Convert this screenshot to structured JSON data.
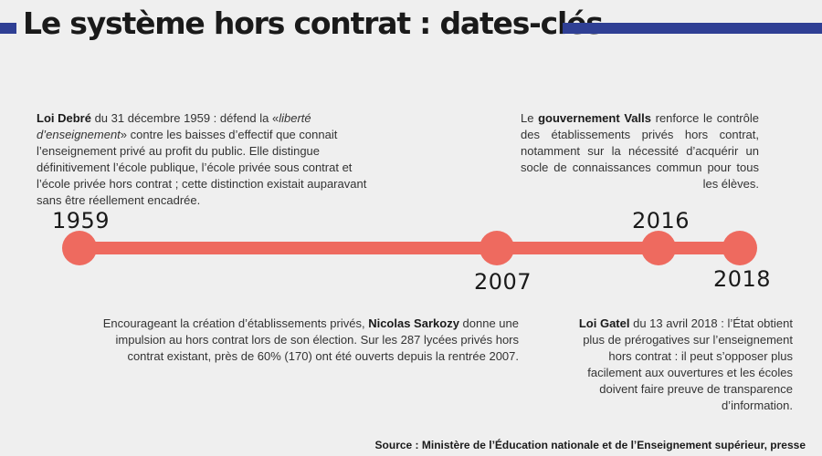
{
  "title": "Le système hors contrat : dates-clés",
  "colors": {
    "accent": "#2f3f94",
    "timeline": "#ee6a5f",
    "background": "#efefef"
  },
  "events": [
    {
      "year": "1959",
      "bold": "Loi Debré",
      "text_before": "",
      "text_after_bold": " du 31 décembre 1959 : défend la «",
      "italic": "liberté d’enseignement",
      "text_after_italic": "» contre les baisses d’effectif que connait l’enseignement privé au profit du public. Elle distingue définitivement l’école publique, l’école privée sous contrat et l’école privée hors contrat ; cette distinction existait auparavant sans être réellement encadrée."
    },
    {
      "year": "2007",
      "text_before": "Encourageant la création d’établissements privés, ",
      "bold": "Nicolas Sarkozy",
      "text_after_bold": " donne une impulsion au hors contrat lors de son élection. Sur les 287 lycées privés hors contrat existant, près de 60% (170) ont été ouverts depuis la rentrée 2007."
    },
    {
      "year": "2016",
      "text_before": "Le ",
      "bold": "gouvernement Valls",
      "text_after_bold": " renforce le contrôle des établissements privés hors contrat, notamment sur la nécessité d’acquérir un socle de connaissances commun pour tous les élèves."
    },
    {
      "year": "2018",
      "bold": "Loi Gatel",
      "text_before": "",
      "text_after_bold": " du 13 avril 2018 : l’État obtient plus de prérogatives sur l’enseignement hors contrat : il peut s’opposer plus facilement aux ouvertures et les écoles doivent faire preuve de transparence d’information."
    }
  ],
  "source": "Source : Ministère de l’Éducation nationale et de l’Enseignement supérieur, presse"
}
